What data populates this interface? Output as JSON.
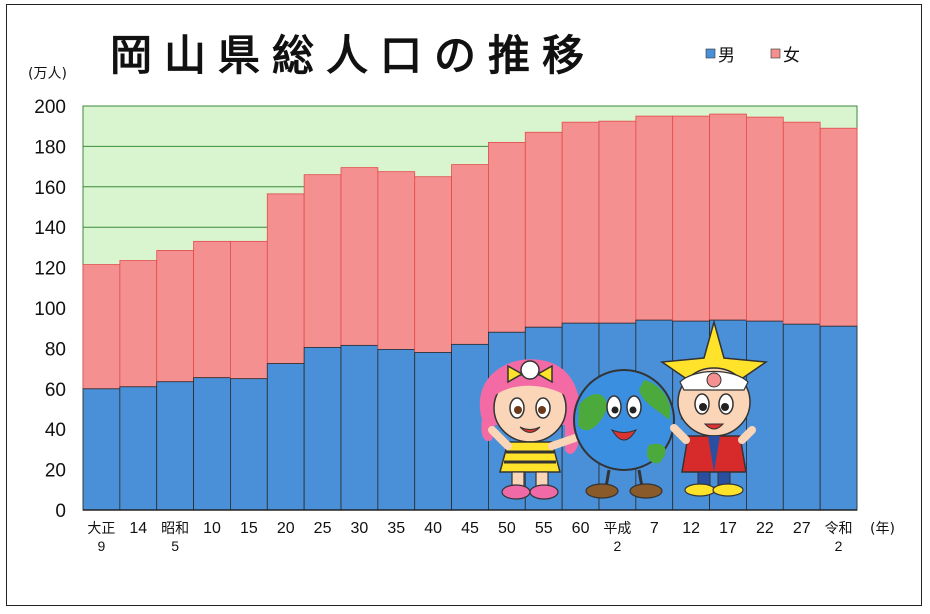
{
  "chart_data": {
    "type": "bar",
    "stacked": true,
    "title": "岡山県総人口の推移",
    "ylabel": "(万人)",
    "xlabel": "(年)",
    "ylim": [
      0,
      200
    ],
    "yticks": [
      0,
      20,
      40,
      60,
      80,
      100,
      120,
      140,
      160,
      180,
      200
    ],
    "legend_position": "top-right",
    "categories": [
      [
        "大正",
        "9"
      ],
      [
        "14"
      ],
      [
        "昭和",
        "5"
      ],
      [
        "10"
      ],
      [
        "15"
      ],
      [
        "20"
      ],
      [
        "25"
      ],
      [
        "30"
      ],
      [
        "35"
      ],
      [
        "40"
      ],
      [
        "45"
      ],
      [
        "50"
      ],
      [
        "55"
      ],
      [
        "60"
      ],
      [
        "平成",
        "2"
      ],
      [
        "7"
      ],
      [
        "12"
      ],
      [
        "17"
      ],
      [
        "22"
      ],
      [
        "27"
      ],
      [
        "令和",
        "2"
      ]
    ],
    "series": [
      {
        "name": "男",
        "color": "#4a90d9",
        "values": [
          60,
          61,
          63.5,
          65.5,
          65,
          72.5,
          80.5,
          81.5,
          79.5,
          78,
          82,
          88,
          90.5,
          92.5,
          92.5,
          94,
          93.5,
          94,
          93.5,
          92,
          91
        ]
      },
      {
        "name": "女",
        "color": "#f49090",
        "values": [
          61.5,
          62.5,
          65,
          67.5,
          68,
          84,
          85.5,
          88,
          88,
          87,
          89,
          94,
          96.5,
          99.5,
          100,
          101,
          101.5,
          102,
          101,
          100,
          98
        ]
      }
    ],
    "colors": {
      "plot_background": "#d9f5d0",
      "gridline": "#3a8a3a",
      "bar_outline": "#e24b4b"
    }
  }
}
